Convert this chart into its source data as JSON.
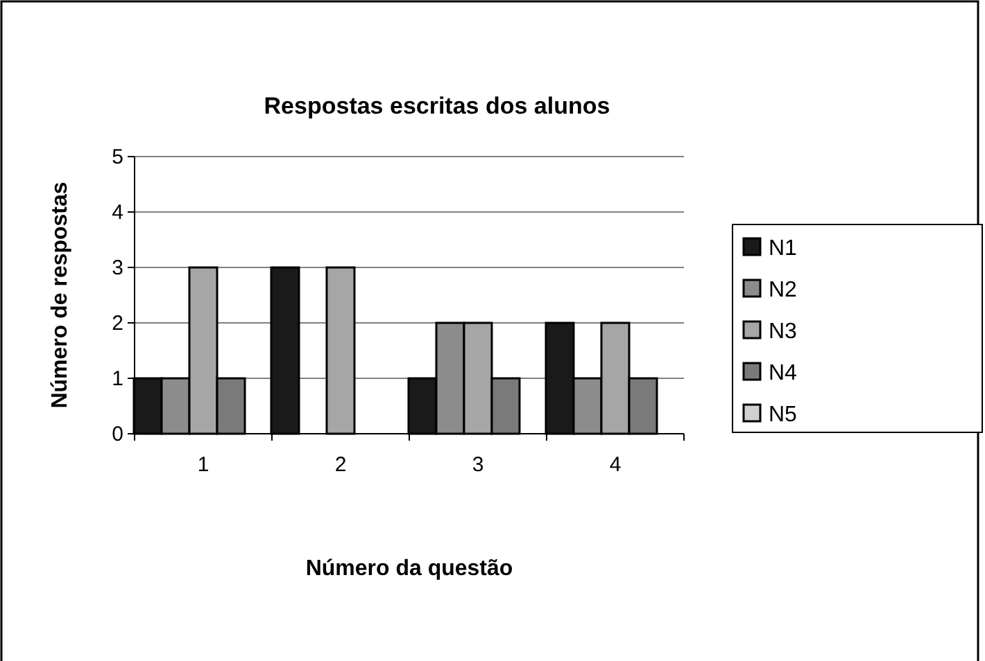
{
  "chart_data": {
    "type": "bar",
    "title": "Respostas escritas dos alunos",
    "xlabel": "Número da questão",
    "ylabel": "Número de respostas",
    "categories": [
      "1",
      "2",
      "3",
      "4"
    ],
    "series": [
      {
        "name": "N1",
        "color": "#1a1a1a",
        "values": [
          1,
          3,
          1,
          2
        ]
      },
      {
        "name": "N2",
        "color": "#8c8c8c",
        "values": [
          1,
          0,
          2,
          1
        ]
      },
      {
        "name": "N3",
        "color": "#a6a6a6",
        "values": [
          3,
          3,
          2,
          2
        ]
      },
      {
        "name": "N4",
        "color": "#7a7a7a",
        "values": [
          1,
          0,
          1,
          1
        ]
      },
      {
        "name": "N5",
        "color": "#d0d0d0",
        "values": [
          0,
          0,
          0,
          0
        ]
      }
    ],
    "ylim": [
      0,
      5
    ],
    "yticks": [
      0,
      1,
      2,
      3,
      4,
      5
    ],
    "grid": "y",
    "legend": "right"
  }
}
